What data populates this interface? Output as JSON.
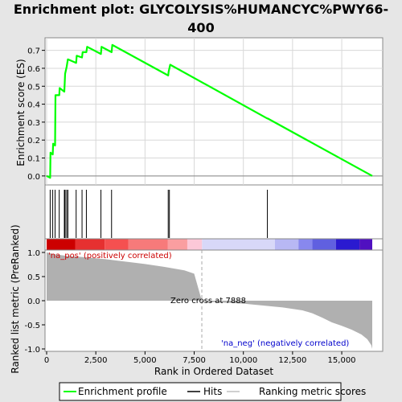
{
  "chart_data": {
    "type": "line",
    "title": "Enrichment plot: GLYCOLYSIS%HUMANCYC%PWY66-400",
    "xlabel": "Rank in Ordered Dataset",
    "xlim": [
      0,
      17000
    ],
    "xticks": [
      0,
      2500,
      5000,
      7500,
      10000,
      12500,
      15000
    ],
    "xtick_labels": [
      "0",
      "2,500",
      "5,000",
      "7,500",
      "10,000",
      "12,500",
      "15,000"
    ],
    "es_panel": {
      "ylabel": "Enrichment score (ES)",
      "ylim": [
        -0.05,
        0.77
      ],
      "yticks": [
        0.0,
        0.1,
        0.2,
        0.3,
        0.4,
        0.5,
        0.6,
        0.7
      ],
      "ytick_labels": [
        "0.0",
        "0.1",
        "0.2",
        "0.3",
        "0.4",
        "0.5",
        "0.6",
        "0.7"
      ],
      "series_name": "Enrichment profile",
      "x": [
        0,
        180,
        195,
        310,
        330,
        430,
        450,
        640,
        660,
        900,
        940,
        1020,
        1080,
        1500,
        1530,
        1800,
        1830,
        2020,
        2060,
        2760,
        2790,
        3300,
        3340,
        6180,
        6200,
        6240,
        6280,
        11220,
        11240,
        16550
      ],
      "y": [
        0.0,
        -0.01,
        0.13,
        0.12,
        0.18,
        0.17,
        0.45,
        0.45,
        0.49,
        0.47,
        0.57,
        0.61,
        0.65,
        0.63,
        0.67,
        0.66,
        0.69,
        0.69,
        0.72,
        0.68,
        0.72,
        0.69,
        0.73,
        0.56,
        0.58,
        0.6,
        0.62,
        0.32,
        0.32,
        0.0
      ]
    },
    "hits": [
      180,
      310,
      430,
      640,
      900,
      940,
      1020,
      1080,
      1500,
      1800,
      2020,
      2760,
      3300,
      6180,
      6240,
      11220
    ],
    "ranked_panel": {
      "ylabel": "Ranked list metric (PreRanked)",
      "ylim": [
        -1.05,
        1.05
      ],
      "yticks": [
        -1.0,
        -0.5,
        0.0,
        0.5,
        1.0
      ],
      "ytick_labels": [
        "-1.0",
        "-0.5",
        "0.0",
        "0.5",
        "1.0"
      ],
      "series_name": "Ranking metric scores",
      "x": [
        0,
        300,
        1000,
        2000,
        3000,
        4000,
        5000,
        6000,
        7000,
        7500,
        7888,
        8000,
        10000,
        11000,
        12000,
        13000,
        13500,
        14000,
        14500,
        15000,
        15500,
        16000,
        16300,
        16500,
        16550
      ],
      "y": [
        1.0,
        0.97,
        0.93,
        0.9,
        0.86,
        0.81,
        0.76,
        0.7,
        0.63,
        0.56,
        0.0,
        -0.02,
        -0.06,
        -0.1,
        -0.14,
        -0.2,
        -0.26,
        -0.35,
        -0.45,
        -0.52,
        -0.6,
        -0.7,
        -0.8,
        -0.92,
        -1.0
      ],
      "pos_label": "'na_pos' (positively correlated)",
      "neg_label": "'na_neg' (negatively correlated)",
      "zero_cross_label": "Zero cross at 7888",
      "zero_cross": 7888
    },
    "colorbar_stops": [
      {
        "x": 0,
        "color": "#cc0000"
      },
      {
        "x": 1450,
        "color": "#e63030"
      },
      {
        "x": 2950,
        "color": "#f55050"
      },
      {
        "x": 4150,
        "color": "#f77a7a"
      },
      {
        "x": 6150,
        "color": "#fa9ea0"
      },
      {
        "x": 7150,
        "color": "#fcc8d8"
      },
      {
        "x": 7900,
        "color": "#d8d8f8"
      },
      {
        "x": 11600,
        "color": "#b8b8f4"
      },
      {
        "x": 12800,
        "color": "#8888ee"
      },
      {
        "x": 13500,
        "color": "#6060e0"
      },
      {
        "x": 14700,
        "color": "#2a1ad0"
      },
      {
        "x": 15900,
        "color": "#5010c0"
      },
      {
        "x": 16550,
        "color": "#5010c0"
      }
    ],
    "legend": [
      {
        "label": "Enrichment profile",
        "color": "#00ff00"
      },
      {
        "label": "Hits",
        "color": "#000000"
      },
      {
        "label": "Ranking metric scores",
        "color": "#c0c0c0"
      }
    ],
    "colors": {
      "es_line": "#00ff00",
      "pos_text": "#cc0000",
      "neg_text": "#0000cc",
      "bars": "#b0b0b0",
      "background": "#e6e6e6"
    }
  }
}
